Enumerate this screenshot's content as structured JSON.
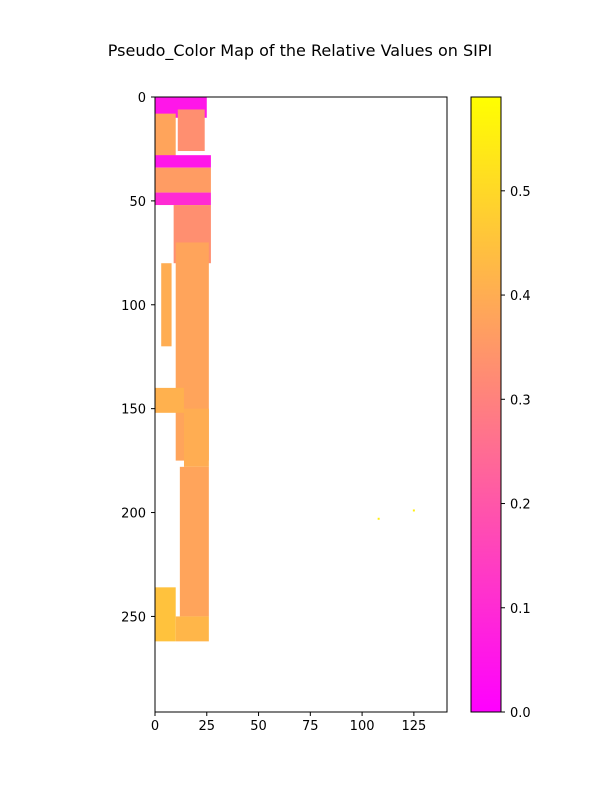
{
  "chart_data": {
    "type": "heatmap",
    "title": "Pseudo_Color Map of the Relative Values on SIPI",
    "xlabel": "",
    "ylabel": "",
    "colormap": "spring",
    "color_low": "#ff00ff",
    "color_high": "#ffff00",
    "xlim": [
      0,
      141
    ],
    "ylim": [
      296,
      0
    ],
    "y_axis_inverted": true,
    "x_ticks": [
      0,
      25,
      50,
      75,
      100,
      125
    ],
    "x_tick_labels": [
      "0",
      "25",
      "50",
      "75",
      "100",
      "125"
    ],
    "y_ticks": [
      0,
      50,
      100,
      150,
      200,
      250
    ],
    "y_tick_labels": [
      "0",
      "50",
      "100",
      "150",
      "200",
      "250"
    ],
    "colorbar": {
      "range": [
        0.0,
        0.59
      ],
      "ticks": [
        0.0,
        0.1,
        0.2,
        0.3,
        0.4,
        0.5
      ],
      "tick_labels": [
        "0.0",
        "0.1",
        "0.2",
        "0.3",
        "0.4",
        "0.5"
      ]
    },
    "regions": [
      {
        "x": [
          0,
          25
        ],
        "y": [
          0,
          10
        ],
        "value": 0.05
      },
      {
        "x": [
          11,
          24
        ],
        "y": [
          6,
          26
        ],
        "value": 0.33
      },
      {
        "x": [
          0,
          10
        ],
        "y": [
          8,
          30
        ],
        "value": 0.38
      },
      {
        "x": [
          0,
          27
        ],
        "y": [
          28,
          34
        ],
        "value": 0.05
      },
      {
        "x": [
          0,
          27
        ],
        "y": [
          34,
          46
        ],
        "value": 0.36
      },
      {
        "x": [
          0,
          27
        ],
        "y": [
          46,
          52
        ],
        "value": 0.1
      },
      {
        "x": [
          9,
          27
        ],
        "y": [
          52,
          80
        ],
        "value": 0.33
      },
      {
        "x": [
          3,
          8
        ],
        "y": [
          80,
          120
        ],
        "value": 0.4
      },
      {
        "x": [
          10,
          26
        ],
        "y": [
          70,
          175
        ],
        "value": 0.38
      },
      {
        "x": [
          0,
          14
        ],
        "y": [
          140,
          152
        ],
        "value": 0.41
      },
      {
        "x": [
          14,
          26
        ],
        "y": [
          150,
          178
        ],
        "value": 0.4
      },
      {
        "x": [
          12,
          26
        ],
        "y": [
          178,
          250
        ],
        "value": 0.38
      },
      {
        "x": [
          0,
          10
        ],
        "y": [
          236,
          262
        ],
        "value": 0.45
      },
      {
        "x": [
          10,
          26
        ],
        "y": [
          250,
          262
        ],
        "value": 0.42
      }
    ],
    "points": [
      {
        "x": 108,
        "y": 203,
        "value": 0.55
      },
      {
        "x": 125,
        "y": 199,
        "value": 0.55
      }
    ]
  }
}
